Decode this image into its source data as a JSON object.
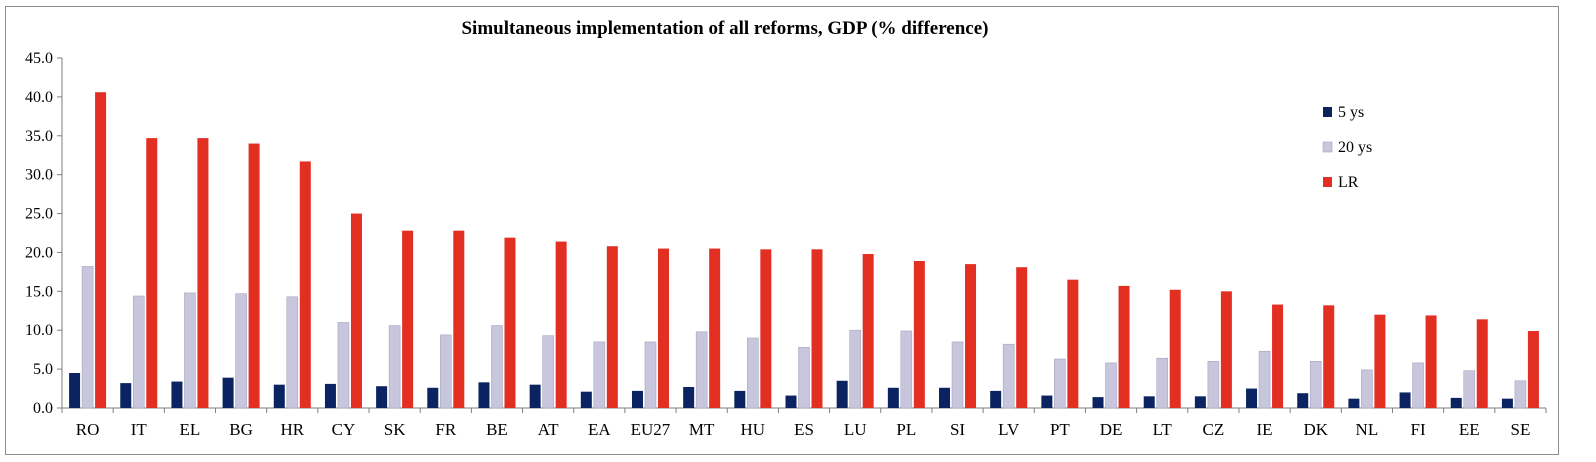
{
  "chart_data": {
    "type": "bar",
    "title": "Simultaneous implementation of all reforms, GDP (% difference)",
    "xlabel": "",
    "ylabel": "",
    "ylim": [
      0,
      45
    ],
    "yticks": [
      "0.0",
      "5.0",
      "10.0",
      "15.0",
      "20.0",
      "25.0",
      "30.0",
      "35.0",
      "40.0",
      "45.0"
    ],
    "categories": [
      "RO",
      "IT",
      "EL",
      "BG",
      "HR",
      "CY",
      "SK",
      "FR",
      "BE",
      "AT",
      "EA",
      "EU27",
      "MT",
      "HU",
      "ES",
      "LU",
      "PL",
      "SI",
      "LV",
      "PT",
      "DE",
      "LT",
      "CZ",
      "IE",
      "DK",
      "NL",
      "FI",
      "EE",
      "SE"
    ],
    "series": [
      {
        "name": "5 ys",
        "color": "#0b2360",
        "values": [
          4.5,
          3.2,
          3.4,
          3.9,
          3.0,
          3.1,
          2.8,
          2.6,
          3.3,
          3.0,
          2.1,
          2.2,
          2.7,
          2.2,
          1.6,
          3.5,
          2.6,
          2.6,
          2.2,
          1.6,
          1.4,
          1.5,
          1.5,
          2.5,
          1.9,
          1.2,
          2.0,
          1.3,
          1.2
        ]
      },
      {
        "name": "20 ys",
        "color": "#c8c6dc",
        "values": [
          18.2,
          14.4,
          14.8,
          14.7,
          14.3,
          11.0,
          10.6,
          9.4,
          10.6,
          9.3,
          8.5,
          8.5,
          9.8,
          9.0,
          7.8,
          10.0,
          9.9,
          8.5,
          8.2,
          6.3,
          5.8,
          6.4,
          6.0,
          7.3,
          6.0,
          4.9,
          5.8,
          4.8,
          3.5
        ]
      },
      {
        "name": "LR",
        "color": "#e32f22",
        "values": [
          40.6,
          34.7,
          34.7,
          34.0,
          31.7,
          25.0,
          22.8,
          22.8,
          21.9,
          21.4,
          20.8,
          20.5,
          20.5,
          20.4,
          20.4,
          19.8,
          18.9,
          18.5,
          18.1,
          16.5,
          15.7,
          15.2,
          15.0,
          13.3,
          13.2,
          12.0,
          11.9,
          11.4,
          9.9
        ]
      }
    ],
    "legend_position": "right",
    "grid": false
  }
}
